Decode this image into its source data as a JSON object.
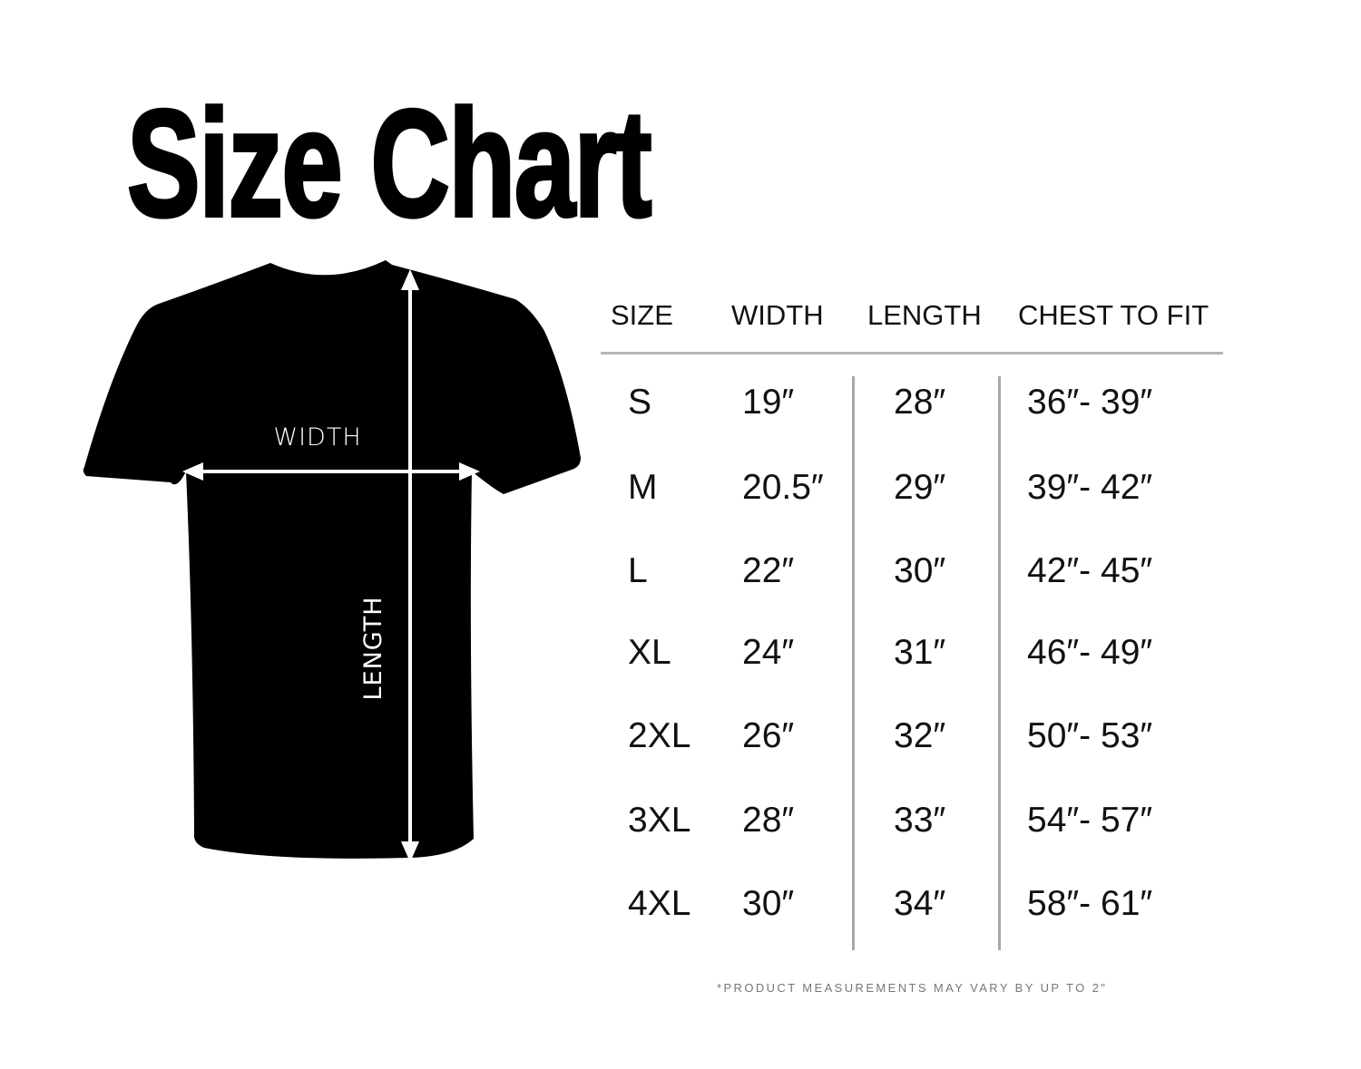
{
  "title": "Size Chart",
  "diagram": {
    "width_label": "WIDTH",
    "length_label": "LENGTH",
    "shirt_color": "#000000"
  },
  "table": {
    "headers": [
      "SIZE",
      "WIDTH",
      "LENGTH",
      "CHEST TO FIT"
    ],
    "rows": [
      [
        "S",
        "19″",
        "28″",
        "36″- 39″"
      ],
      [
        "M",
        "20.5″",
        "29″",
        "39″- 42″"
      ],
      [
        "L",
        "22″",
        "30″",
        "42″- 45″"
      ],
      [
        "XL",
        "24″",
        "31″",
        "46″- 49″"
      ],
      [
        "2XL",
        "26″",
        "32″",
        "50″- 53″"
      ],
      [
        "3XL",
        "28″",
        "33″",
        "54″- 57″"
      ],
      [
        "4XL",
        "30″",
        "34″",
        "58″- 61″"
      ]
    ]
  },
  "footnote": "*PRODUCT MEASUREMENTS MAY VARY BY UP TO 2\""
}
